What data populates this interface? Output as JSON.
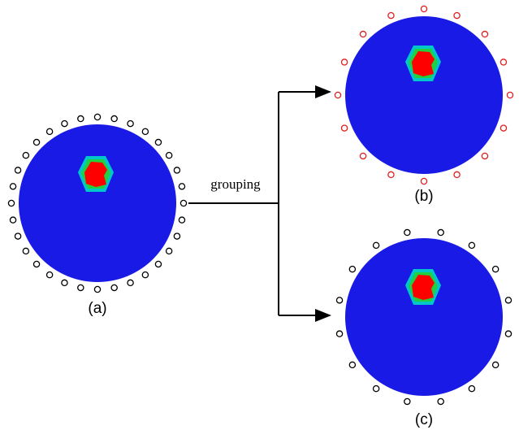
{
  "arrow_label": "grouping",
  "panels": [
    {
      "label": "(a)"
    },
    {
      "label": "(b)"
    },
    {
      "label": "(c)"
    }
  ]
}
